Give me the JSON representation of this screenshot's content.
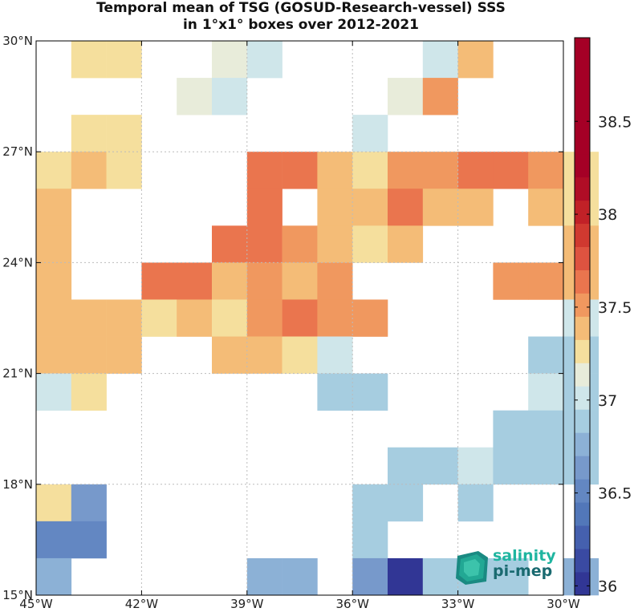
{
  "chart_data": {
    "type": "heatmap",
    "title": "Temporal mean of TSG (GOSUD-Research-vessel) SSS",
    "subtitle": "in 1°x1° boxes over 2012-2021",
    "xlim": [
      -45,
      -30
    ],
    "ylim": [
      15,
      30
    ],
    "x_ticks": [
      -45,
      -42,
      -39,
      -36,
      -33,
      -30
    ],
    "x_tick_labels": [
      "45°W",
      "42°W",
      "39°W",
      "36°W",
      "33°W",
      "30°W"
    ],
    "y_ticks": [
      15,
      18,
      21,
      24,
      27,
      30
    ],
    "y_tick_labels": [
      "15°N",
      "18°N",
      "21°N",
      "24°N",
      "27°N",
      "30°N"
    ],
    "grid": true,
    "colorbar": {
      "min": 35.95,
      "max": 38.95,
      "step": 0.125,
      "ticks": [
        36,
        36.5,
        37,
        37.5,
        38,
        38.5
      ],
      "tick_labels": [
        "36",
        "36.5",
        "37",
        "37.5",
        "38",
        "38.5"
      ],
      "colors": [
        "#313695",
        "#3a4aa2",
        "#4560ae",
        "#5277b9",
        "#6387c2",
        "#7799cb",
        "#8cb1d6",
        "#a6cde0",
        "#cfe6ea",
        "#e8ecda",
        "#f5df9d",
        "#f4bc77",
        "#f0985f",
        "#ea754e",
        "#de5340",
        "#d03930",
        "#c12127",
        "#b00d26",
        "#a50026",
        "#a50026",
        "#a50026",
        "#a50026",
        "#a50026",
        "#a50026"
      ]
    },
    "cells": [
      {
        "lon": -44,
        "lat": 29,
        "value": 37.2
      },
      {
        "lon": -43,
        "lat": 29,
        "value": 37.2
      },
      {
        "lon": -40,
        "lat": 29,
        "value": 37.1
      },
      {
        "lon": -39,
        "lat": 29,
        "value": 36.95
      },
      {
        "lon": -34,
        "lat": 29,
        "value": 36.95
      },
      {
        "lon": -33,
        "lat": 29,
        "value": 37.35
      },
      {
        "lon": -41,
        "lat": 28,
        "value": 37.1
      },
      {
        "lon": -40,
        "lat": 28,
        "value": 36.95
      },
      {
        "lon": -35,
        "lat": 28,
        "value": 37.1
      },
      {
        "lon": -34,
        "lat": 28,
        "value": 37.45
      },
      {
        "lon": -44,
        "lat": 27,
        "value": 37.2
      },
      {
        "lon": -43,
        "lat": 27,
        "value": 37.2
      },
      {
        "lon": -36,
        "lat": 27,
        "value": 37.0
      },
      {
        "lon": -45,
        "lat": 26,
        "value": 37.2
      },
      {
        "lon": -44,
        "lat": 26,
        "value": 37.35
      },
      {
        "lon": -43,
        "lat": 26,
        "value": 37.2
      },
      {
        "lon": -39,
        "lat": 26,
        "value": 37.6
      },
      {
        "lon": -38,
        "lat": 26,
        "value": 37.6
      },
      {
        "lon": -37,
        "lat": 26,
        "value": 37.35
      },
      {
        "lon": -36,
        "lat": 26,
        "value": 37.2
      },
      {
        "lon": -35,
        "lat": 26,
        "value": 37.45
      },
      {
        "lon": -34,
        "lat": 26,
        "value": 37.45
      },
      {
        "lon": -33,
        "lat": 26,
        "value": 37.6
      },
      {
        "lon": -32,
        "lat": 26,
        "value": 37.6
      },
      {
        "lon": -31,
        "lat": 26,
        "value": 37.45
      },
      {
        "lon": -30,
        "lat": 26,
        "value": 37.2
      },
      {
        "lon": -45,
        "lat": 25,
        "value": 37.35
      },
      {
        "lon": -39,
        "lat": 25,
        "value": 37.6
      },
      {
        "lon": -37,
        "lat": 25,
        "value": 37.35
      },
      {
        "lon": -36,
        "lat": 25,
        "value": 37.35
      },
      {
        "lon": -35,
        "lat": 25,
        "value": 37.6
      },
      {
        "lon": -34,
        "lat": 25,
        "value": 37.35
      },
      {
        "lon": -33,
        "lat": 25,
        "value": 37.35
      },
      {
        "lon": -31,
        "lat": 25,
        "value": 37.35
      },
      {
        "lon": -30,
        "lat": 25,
        "value": 37.2
      },
      {
        "lon": -45,
        "lat": 24,
        "value": 37.35
      },
      {
        "lon": -40,
        "lat": 24,
        "value": 37.6
      },
      {
        "lon": -39,
        "lat": 24,
        "value": 37.6
      },
      {
        "lon": -38,
        "lat": 24,
        "value": 37.45
      },
      {
        "lon": -37,
        "lat": 24,
        "value": 37.35
      },
      {
        "lon": -36,
        "lat": 24,
        "value": 37.2
      },
      {
        "lon": -35,
        "lat": 24,
        "value": 37.35
      },
      {
        "lon": -30,
        "lat": 24,
        "value": 37.35
      },
      {
        "lon": -45,
        "lat": 23,
        "value": 37.35
      },
      {
        "lon": -42,
        "lat": 23,
        "value": 37.6
      },
      {
        "lon": -41,
        "lat": 23,
        "value": 37.6
      },
      {
        "lon": -40,
        "lat": 23,
        "value": 37.35
      },
      {
        "lon": -39,
        "lat": 23,
        "value": 37.45
      },
      {
        "lon": -38,
        "lat": 23,
        "value": 37.35
      },
      {
        "lon": -37,
        "lat": 23,
        "value": 37.45
      },
      {
        "lon": -32,
        "lat": 23,
        "value": 37.45
      },
      {
        "lon": -31,
        "lat": 23,
        "value": 37.45
      },
      {
        "lon": -30,
        "lat": 23,
        "value": 37.35
      },
      {
        "lon": -45,
        "lat": 22,
        "value": 37.35
      },
      {
        "lon": -44,
        "lat": 22,
        "value": 37.35
      },
      {
        "lon": -43,
        "lat": 22,
        "value": 37.35
      },
      {
        "lon": -42,
        "lat": 22,
        "value": 37.2
      },
      {
        "lon": -41,
        "lat": 22,
        "value": 37.35
      },
      {
        "lon": -40,
        "lat": 22,
        "value": 37.2
      },
      {
        "lon": -39,
        "lat": 22,
        "value": 37.45
      },
      {
        "lon": -38,
        "lat": 22,
        "value": 37.6
      },
      {
        "lon": -37,
        "lat": 22,
        "value": 37.45
      },
      {
        "lon": -36,
        "lat": 22,
        "value": 37.45
      },
      {
        "lon": -30,
        "lat": 22,
        "value": 37.0
      },
      {
        "lon": -45,
        "lat": 21,
        "value": 37.35
      },
      {
        "lon": -44,
        "lat": 21,
        "value": 37.35
      },
      {
        "lon": -43,
        "lat": 21,
        "value": 37.35
      },
      {
        "lon": -40,
        "lat": 21,
        "value": 37.35
      },
      {
        "lon": -39,
        "lat": 21,
        "value": 37.35
      },
      {
        "lon": -38,
        "lat": 21,
        "value": 37.2
      },
      {
        "lon": -37,
        "lat": 21,
        "value": 37.0
      },
      {
        "lon": -31,
        "lat": 21,
        "value": 36.85
      },
      {
        "lon": -30,
        "lat": 21,
        "value": 36.85
      },
      {
        "lon": -45,
        "lat": 20,
        "value": 37.0
      },
      {
        "lon": -44,
        "lat": 20,
        "value": 37.2
      },
      {
        "lon": -37,
        "lat": 20,
        "value": 36.85
      },
      {
        "lon": -36,
        "lat": 20,
        "value": 36.85
      },
      {
        "lon": -31,
        "lat": 20,
        "value": 37.0
      },
      {
        "lon": -30,
        "lat": 20,
        "value": 36.85
      },
      {
        "lon": -32,
        "lat": 19,
        "value": 36.85
      },
      {
        "lon": -31,
        "lat": 19,
        "value": 36.85
      },
      {
        "lon": -30,
        "lat": 19,
        "value": 36.85
      },
      {
        "lon": -35,
        "lat": 18,
        "value": 36.85
      },
      {
        "lon": -34,
        "lat": 18,
        "value": 36.85
      },
      {
        "lon": -33,
        "lat": 18,
        "value": 37.0
      },
      {
        "lon": -32,
        "lat": 18,
        "value": 36.85
      },
      {
        "lon": -31,
        "lat": 18,
        "value": 36.85
      },
      {
        "lon": -30,
        "lat": 18,
        "value": 36.85
      },
      {
        "lon": -45,
        "lat": 17,
        "value": 37.2
      },
      {
        "lon": -44,
        "lat": 17,
        "value": 36.6
      },
      {
        "lon": -36,
        "lat": 17,
        "value": 36.85
      },
      {
        "lon": -35,
        "lat": 17,
        "value": 36.85
      },
      {
        "lon": -33,
        "lat": 17,
        "value": 36.85
      },
      {
        "lon": -45,
        "lat": 16,
        "value": 36.45
      },
      {
        "lon": -44,
        "lat": 16,
        "value": 36.45
      },
      {
        "lon": -36,
        "lat": 16,
        "value": 36.85
      },
      {
        "lon": -45,
        "lat": 15,
        "value": 36.75
      },
      {
        "lon": -39,
        "lat": 15,
        "value": 36.75
      },
      {
        "lon": -38,
        "lat": 15,
        "value": 36.75
      },
      {
        "lon": -36,
        "lat": 15,
        "value": 36.6
      },
      {
        "lon": -35,
        "lat": 15,
        "value": 36.05
      },
      {
        "lon": -34,
        "lat": 15,
        "value": 36.85
      },
      {
        "lon": -33,
        "lat": 15,
        "value": 36.85
      },
      {
        "lon": -32,
        "lat": 15,
        "value": 36.85
      },
      {
        "lon": -30,
        "lat": 15,
        "value": 36.75
      }
    ]
  },
  "logo": {
    "line1": "salinity",
    "line2": "pi-mep"
  }
}
